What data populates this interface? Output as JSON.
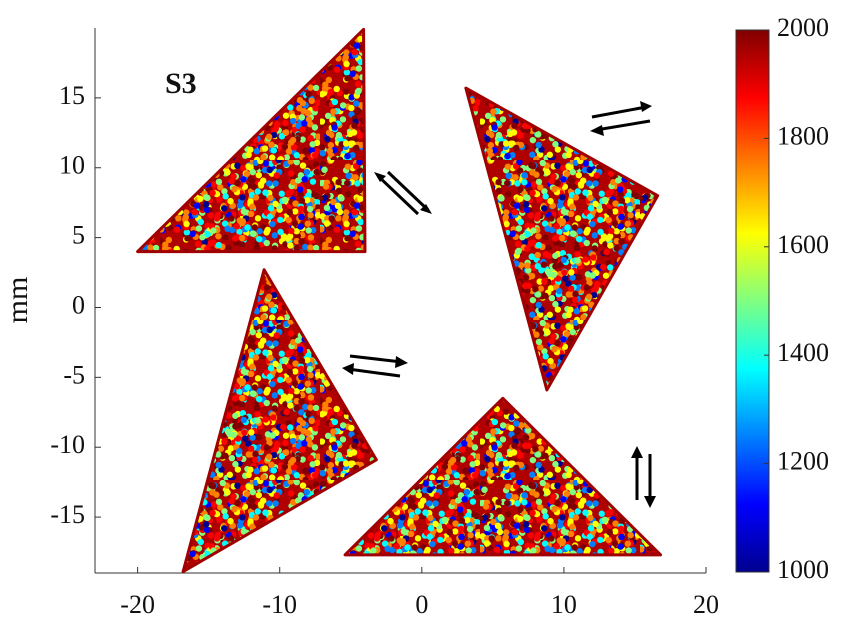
{
  "chart_data": {
    "type": "polygon",
    "annotation": "S3",
    "y_label": "mm",
    "xlim": [
      -23,
      20
    ],
    "xticks": [
      -20,
      -10,
      0,
      10,
      20
    ],
    "ylim": [
      -19,
      20
    ],
    "yticks": [
      -15,
      -10,
      -5,
      0,
      5,
      10,
      15
    ],
    "triangles": [
      {
        "x": [
          -20,
          -4,
          -4.1
        ],
        "y": [
          4,
          4,
          19.9
        ]
      },
      {
        "x": [
          3.1,
          16.6,
          8.8
        ],
        "y": [
          15.7,
          8.0,
          -5.9
        ]
      },
      {
        "x": [
          -11.1,
          -3.2,
          -16.8
        ],
        "y": [
          2.7,
          -10.9,
          -18.9
        ]
      },
      {
        "x": [
          -5.4,
          16.8,
          5.7
        ],
        "y": [
          -17.7,
          -17.7,
          -6.5
        ]
      }
    ],
    "colorbar": {
      "clim": [
        1000,
        2000
      ],
      "ticks": [
        1000,
        1200,
        1400,
        1600,
        1800,
        2000
      ],
      "colormap": [
        "#00008f",
        "#0000ff",
        "#0080ff",
        "#00ffff",
        "#80ff80",
        "#ffff00",
        "#ff8000",
        "#ff0000",
        "#800000"
      ]
    }
  }
}
